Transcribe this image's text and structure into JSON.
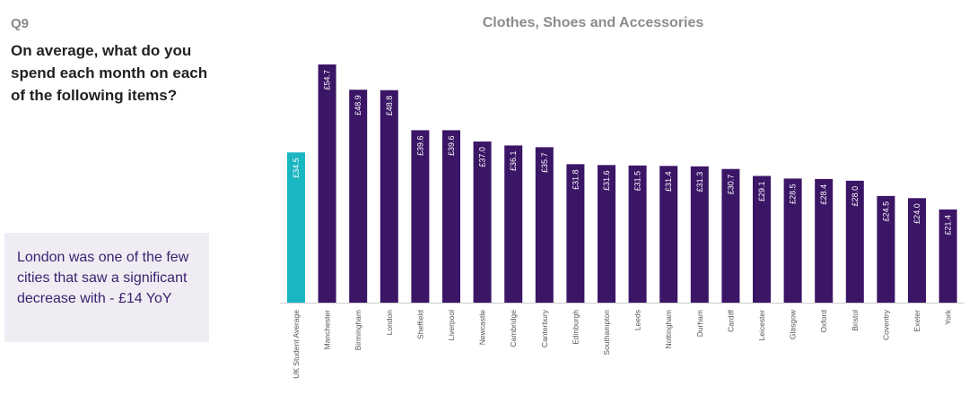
{
  "question": {
    "number": "Q9",
    "text": "On average, what do you spend each month on each of the following items?"
  },
  "callout": {
    "text": "London was one of the few cities that saw a significant decrease with - £14 YoY"
  },
  "colors": {
    "average_bar": "#1ab6c2",
    "city_bar": "#3b1566",
    "callout_bg": "#efedf3"
  },
  "chart_data": {
    "type": "bar",
    "title": "Clothes, Shoes and Accessories",
    "xlabel": "",
    "ylabel": "",
    "ylim": [
      0,
      56
    ],
    "grid": false,
    "value_prefix": "£",
    "categories": [
      "UK Student Average",
      "Manchester",
      "Birmingham",
      "London",
      "Sheffield",
      "Liverpool",
      "Newcastle",
      "Cambridge",
      "Canterbury",
      "Edinburgh",
      "Southampton",
      "Leeds",
      "Nottingham",
      "Durham",
      "Cardiff",
      "Leicester",
      "Glasgow",
      "Oxford",
      "Bristol",
      "Coventry",
      "Exeter",
      "York"
    ],
    "values": [
      34.5,
      54.7,
      48.9,
      48.8,
      39.6,
      39.6,
      37.0,
      36.1,
      35.7,
      31.8,
      31.6,
      31.5,
      31.4,
      31.3,
      30.7,
      29.1,
      28.5,
      28.4,
      28.0,
      24.5,
      24.0,
      21.4
    ],
    "labels": [
      "£34.5",
      "£54.7",
      "£48.9",
      "£48.8",
      "£39.6",
      "£39.6",
      "£37.0",
      "£36.1",
      "£35.7",
      "£31.8",
      "£31.6",
      "£31.5",
      "£31.4",
      "£31.3",
      "£30.7",
      "£29.1",
      "£28.5",
      "£28.4",
      "£28.0",
      "£24.5",
      "£24.0",
      "£21.4"
    ]
  }
}
